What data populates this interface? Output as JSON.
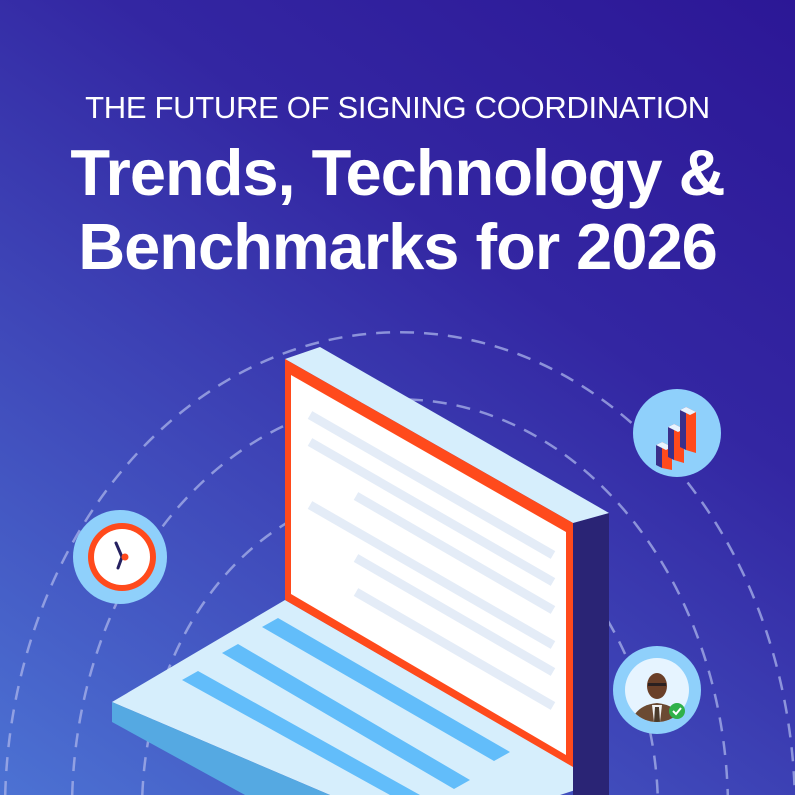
{
  "header": {
    "eyebrow": "THE FUTURE OF SIGNING COORDINATION",
    "title_line1": "Trends, Technology &",
    "title_line2": "Benchmarks for 2026"
  },
  "illustration": {
    "icons": [
      "laptop-icon",
      "clock-icon",
      "bar-chart-icon",
      "avatar-verified-icon"
    ],
    "colors": {
      "background_top": "#2c1796",
      "background_bottom": "#4c72d3",
      "screen_frame": "#ff4a1c",
      "laptop_light": "#d6eefc",
      "laptop_side": "#2a2475",
      "keys": "#62bdfa",
      "check_badge": "#2fb14a"
    }
  }
}
